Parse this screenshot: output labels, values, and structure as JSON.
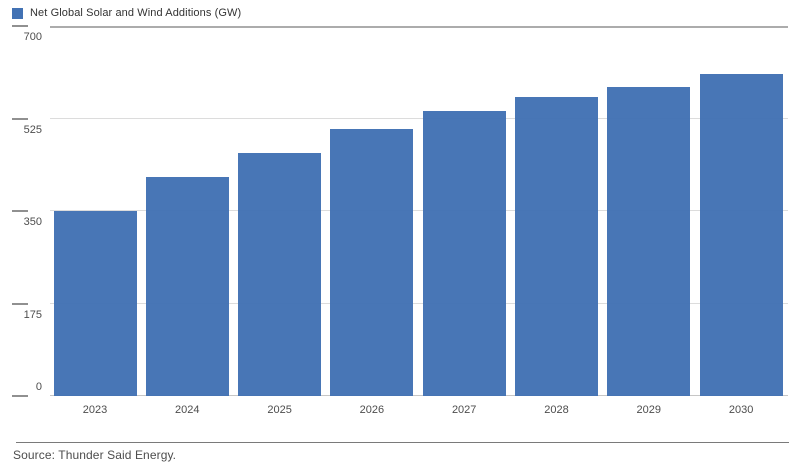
{
  "legend": {
    "label": "Net Global Solar and Wind Additions (GW)",
    "swatch_color": "#4272B4"
  },
  "footer": {
    "source_text": "Source: Thunder Said Energy."
  },
  "chart_data": {
    "type": "bar",
    "title": "Net Global Solar and Wind Additions (GW)",
    "categories": [
      "2023",
      "2024",
      "2025",
      "2026",
      "2027",
      "2028",
      "2029",
      "2030"
    ],
    "values": [
      350,
      415,
      460,
      505,
      540,
      565,
      585,
      610
    ],
    "unit": "GW",
    "xlabel": "",
    "ylabel": "",
    "ylim": [
      0,
      700
    ],
    "yticks": [
      0,
      175,
      350,
      525,
      700
    ],
    "grid": true,
    "legend_position": "top-left",
    "bar_color": "#4272B4",
    "source": "Source: Thunder Said Energy."
  }
}
